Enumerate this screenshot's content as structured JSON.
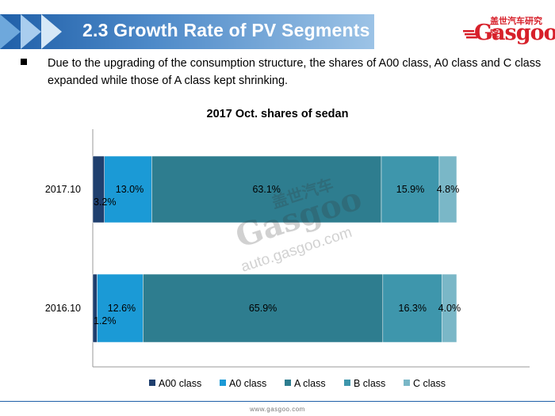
{
  "header": {
    "title": "2.3 Growth Rate of PV Segments",
    "logo_cn": "盖世汽车研究院",
    "logo_en": "Gasgoo"
  },
  "bullet": {
    "text": "Due to the upgrading  of the consumption  structure,  the shares of A00 class, A0 class and C class  expanded  while  those of  A class kept  shrinking."
  },
  "colors": {
    "A00 class": "#1f3f6e",
    "A0 class": "#1b9ad6",
    "A class": "#2e7d8f",
    "B class": "#3e96ac",
    "C class": "#7ab7c7"
  },
  "chart_data": {
    "type": "bar",
    "orientation": "horizontal",
    "stacked": true,
    "title": "2017 Oct. shares of sedan",
    "categories": [
      "2017.10",
      "2016.10"
    ],
    "series": [
      {
        "name": "A00 class",
        "values": [
          3.2,
          1.2
        ],
        "labels": [
          "3.2%",
          "1.2%"
        ]
      },
      {
        "name": "A0 class",
        "values": [
          13.0,
          12.6
        ],
        "labels": [
          "13.0%",
          "12.6%"
        ]
      },
      {
        "name": "A class",
        "values": [
          63.1,
          65.9
        ],
        "labels": [
          "63.1%",
          "65.9%"
        ]
      },
      {
        "name": "B class",
        "values": [
          15.9,
          16.3
        ],
        "labels": [
          "15.9%",
          "16.3%"
        ]
      },
      {
        "name": "C class",
        "values": [
          4.8,
          4.0
        ],
        "labels": [
          "4.8%",
          "4.0%"
        ]
      }
    ],
    "xlim": [
      0,
      100
    ],
    "legend": "bottom",
    "grid": false
  },
  "watermark": {
    "cn": "盖世汽车",
    "en": "Gasgoo",
    "url": "auto.gasgoo.com"
  },
  "footer": {
    "text": "www.gasgoo.com"
  }
}
